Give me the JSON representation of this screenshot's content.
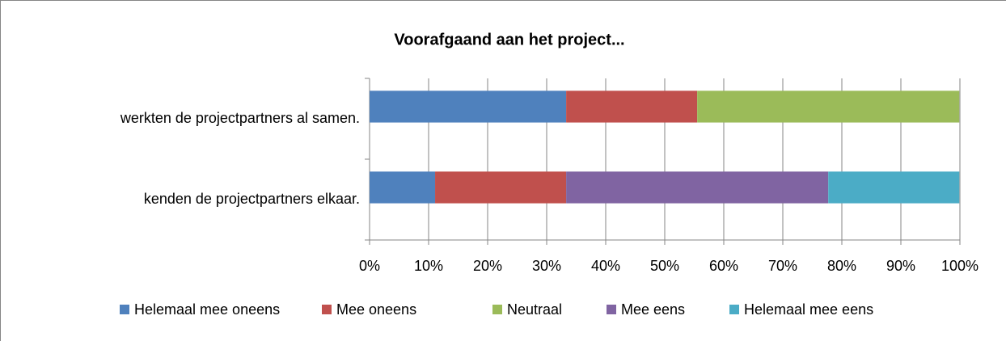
{
  "chart_data": {
    "type": "stacked-bar-horizontal",
    "title": "Voorafgaand aan het project...",
    "categories": [
      "werkten de projectpartners al samen.",
      "kenden de projectpartners elkaar."
    ],
    "series": [
      {
        "name": "Helemaal mee oneens",
        "color": "#4f81bd",
        "values": [
          33.3,
          11.1
        ]
      },
      {
        "name": "Mee oneens",
        "color": "#c0504d",
        "values": [
          22.2,
          22.2
        ]
      },
      {
        "name": "Neutraal",
        "color": "#9bbb59",
        "values": [
          44.4,
          0
        ]
      },
      {
        "name": "Mee eens",
        "color": "#8064a2",
        "values": [
          0,
          44.4
        ]
      },
      {
        "name": "Helemaal mee eens",
        "color": "#4bacc6",
        "values": [
          0,
          22.2
        ]
      }
    ],
    "xlim": [
      0,
      100
    ],
    "xticks": [
      {
        "value": 0,
        "label": "0%"
      },
      {
        "value": 10,
        "label": "10%"
      },
      {
        "value": 20,
        "label": "20%"
      },
      {
        "value": 30,
        "label": "30%"
      },
      {
        "value": 40,
        "label": "40%"
      },
      {
        "value": 50,
        "label": "50%"
      },
      {
        "value": 60,
        "label": "60%"
      },
      {
        "value": 70,
        "label": "70%"
      },
      {
        "value": 80,
        "label": "80%"
      },
      {
        "value": 90,
        "label": "90%"
      },
      {
        "value": 100,
        "label": "100%"
      }
    ],
    "grid": true,
    "legend": "bottom"
  }
}
